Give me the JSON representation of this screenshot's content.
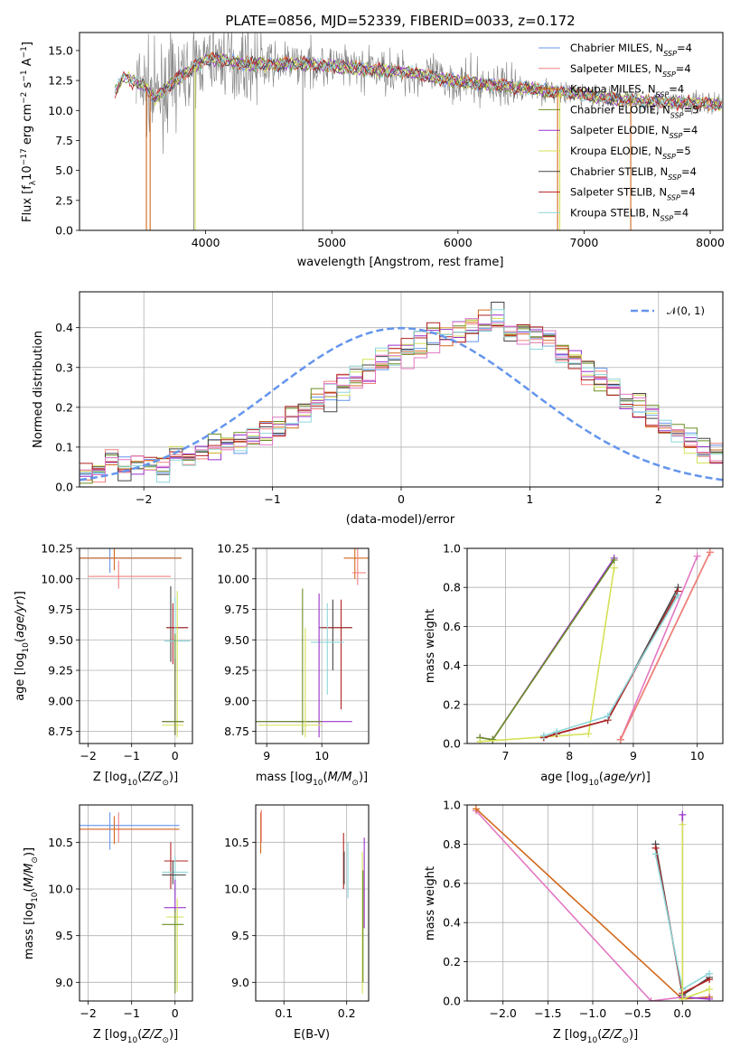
{
  "figure": {
    "title": "PLATE=0856, MJD=52339, FIBERID=0033, z=0.172"
  },
  "colors": {
    "Chabrier MILES": "#6495ED",
    "Salpeter MILES": "#F08080",
    "Kroupa MILES": "#D2691E",
    "Chabrier ELODIE": "#6B8E23",
    "Salpeter ELODIE": "#9932CC",
    "Kroupa ELODIE": "#D4E157",
    "Chabrier STELIB": "#444444",
    "Salpeter STELIB": "#B22222",
    "Kroupa STELIB": "#8ED6DA",
    "data": "#808080",
    "gaussian": "#6495ED",
    "hot_pink": "#E377C2"
  },
  "chart_data": [
    {
      "id": "spectrum",
      "type": "line",
      "title": "PLATE=0856, MJD=52339, FIBERID=0033, z=0.172",
      "xlabel": "wavelength [Angstrom, rest frame]",
      "ylabel": "Flux [f_λ 10^-17 erg cm^-2 s^-1 A^-1]",
      "xlim": [
        3000,
        8100
      ],
      "ylim": [
        0,
        16.5
      ],
      "xticks": [
        "4000",
        "5000",
        "6000",
        "7000",
        "8000"
      ],
      "yticks": [
        "0.0",
        "2.5",
        "5.0",
        "7.5",
        "10.0",
        "12.5",
        "15.0"
      ],
      "legend_position": "upper-right",
      "legend": [
        {
          "label": "Chabrier MILES, N",
          "sub": "SSP",
          "tail": "=4"
        },
        {
          "label": "Salpeter MILES, N",
          "sub": "SSP",
          "tail": "=4"
        },
        {
          "label": "Kroupa MILES, N",
          "sub": "SSP",
          "tail": "=4"
        },
        {
          "label": "Chabrier ELODIE, N",
          "sub": "SSP",
          "tail": "=5"
        },
        {
          "label": "Salpeter ELODIE, N",
          "sub": "SSP",
          "tail": "=4"
        },
        {
          "label": "Kroupa ELODIE, N",
          "sub": "SSP",
          "tail": "=5"
        },
        {
          "label": "Chabrier STELIB, N",
          "sub": "SSP",
          "tail": "=4"
        },
        {
          "label": "Salpeter STELIB, N",
          "sub": "SSP",
          "tail": "=4"
        },
        {
          "label": "Kroupa STELIB, N",
          "sub": "SSP",
          "tail": "=4"
        }
      ],
      "series_note": "observed spectrum (grey) plus nine model fits",
      "model_continuum_knots": {
        "x": [
          3280,
          3350,
          3500,
          3600,
          3700,
          3800,
          3900,
          4000,
          4100,
          4300,
          4500,
          4800,
          5000,
          5300,
          5600,
          6000,
          6300,
          6600,
          6800,
          7000,
          7300,
          7600,
          7900,
          8100
        ],
        "y": [
          11.5,
          12.8,
          12.1,
          11.0,
          12.0,
          12.8,
          13.6,
          14.2,
          14.3,
          13.9,
          13.8,
          13.9,
          13.7,
          13.4,
          13.2,
          12.4,
          12.1,
          11.8,
          11.5,
          11.3,
          10.9,
          10.7,
          10.6,
          10.5
        ]
      },
      "deep_features": {
        "orange_drop_x": [
          3530,
          3560,
          6790,
          7370
        ],
        "yellow_drop_x": [
          3910,
          6800
        ],
        "grey_spike_x": [
          3905,
          4770
        ]
      }
    },
    {
      "id": "residuals",
      "type": "area",
      "xlabel": "(data-model)/error",
      "ylabel": "Normed distribution",
      "xlim": [
        -2.5,
        2.5
      ],
      "ylim": [
        0,
        0.49
      ],
      "xticks": [
        "−2",
        "−1",
        "0",
        "1",
        "2"
      ],
      "yticks": [
        "0.0",
        "0.1",
        "0.2",
        "0.3",
        "0.4"
      ],
      "legend": "𝒩(0, 1)",
      "legend_position": "upper-right",
      "bin_width": 0.1,
      "bin_start": -2.5,
      "histogram_values_approx": [
        0.04,
        0.04,
        0.06,
        0.05,
        0.06,
        0.06,
        0.05,
        0.08,
        0.07,
        0.08,
        0.1,
        0.11,
        0.11,
        0.13,
        0.14,
        0.16,
        0.17,
        0.19,
        0.21,
        0.23,
        0.25,
        0.27,
        0.29,
        0.31,
        0.33,
        0.34,
        0.36,
        0.38,
        0.38,
        0.39,
        0.4,
        0.41,
        0.42,
        0.4,
        0.39,
        0.37,
        0.36,
        0.34,
        0.32,
        0.29,
        0.27,
        0.25,
        0.22,
        0.2,
        0.18,
        0.16,
        0.14,
        0.12,
        0.1,
        0.08,
        0.07,
        0.06,
        0.05,
        0.05,
        0.04
      ]
    },
    {
      "id": "age-vs-Z",
      "type": "scatter",
      "xlabel": "Z [log10(Z/Z⊙)]",
      "ylabel": "age  [log10(age/yr)]",
      "xlim": [
        -2.2,
        0.4
      ],
      "ylim": [
        8.65,
        10.25
      ],
      "xticks": [
        "−2",
        "−1",
        "0"
      ],
      "yticks": [
        "8.75",
        "9.00",
        "9.25",
        "9.50",
        "9.75",
        "10.00",
        "10.25"
      ]
    },
    {
      "id": "age-vs-mass",
      "type": "scatter",
      "xlabel": "mass [log10(M/M⊙)]",
      "ylabel": "",
      "xlim": [
        8.8,
        10.85
      ],
      "ylim": [
        8.65,
        10.25
      ],
      "xticks": [
        "9",
        "10"
      ],
      "yticks": [
        "8.75",
        "9.00",
        "9.25",
        "9.50",
        "9.75",
        "10.00",
        "10.25"
      ]
    },
    {
      "id": "massweight-vs-age",
      "type": "line",
      "xlabel": "age  [log10(age/yr)]",
      "ylabel": "mass weight",
      "xlim": [
        6.4,
        10.4
      ],
      "ylim": [
        0,
        1
      ],
      "xticks": [
        "7",
        "8",
        "9",
        "10"
      ],
      "yticks": [
        "0.0",
        "0.2",
        "0.4",
        "0.6",
        "0.8",
        "1.0"
      ],
      "series": [
        {
          "color_key": "Salpeter ELODIE",
          "x": [
            6.6,
            6.8,
            8.7
          ],
          "y": [
            0.03,
            0.02,
            0.95
          ]
        },
        {
          "color_key": "Chabrier ELODIE",
          "x": [
            6.6,
            6.8,
            8.7
          ],
          "y": [
            0.03,
            0.02,
            0.94
          ]
        },
        {
          "color_key": "Kroupa ELODIE",
          "x": [
            6.6,
            8.3,
            8.7
          ],
          "y": [
            0.01,
            0.05,
            0.9
          ]
        },
        {
          "color_key": "Chabrier STELIB",
          "x": [
            7.6,
            7.8,
            8.6,
            9.7
          ],
          "y": [
            0.03,
            0.05,
            0.12,
            0.8
          ]
        },
        {
          "color_key": "Salpeter STELIB",
          "x": [
            7.6,
            7.8,
            8.6,
            9.7
          ],
          "y": [
            0.03,
            0.05,
            0.12,
            0.78
          ]
        },
        {
          "color_key": "Kroupa STELIB",
          "x": [
            7.6,
            7.8,
            8.6,
            9.7
          ],
          "y": [
            0.04,
            0.06,
            0.14,
            0.76
          ]
        },
        {
          "color_key": "hot_pink",
          "x": [
            8.8,
            10.0
          ],
          "y": [
            0.02,
            0.96
          ]
        },
        {
          "color_key": "Kroupa MILES",
          "x": [
            8.8,
            10.2
          ],
          "y": [
            0.02,
            0.98
          ]
        },
        {
          "color_key": "Salpeter MILES",
          "x": [
            8.8,
            10.2
          ],
          "y": [
            0.02,
            0.98
          ]
        }
      ]
    },
    {
      "id": "mass-vs-Z",
      "type": "scatter",
      "xlabel": "Z [log10(Z/Z⊙)]",
      "ylabel": "mass [log10(M/M⊙)]",
      "xlim": [
        -2.2,
        0.4
      ],
      "ylim": [
        8.8,
        10.9
      ],
      "xticks": [
        "−2",
        "−1",
        "0"
      ],
      "yticks": [
        "9.0",
        "9.5",
        "10.0",
        "10.5"
      ]
    },
    {
      "id": "mass-vs-EBV",
      "type": "scatter",
      "xlabel": "E(B-V)",
      "ylabel": "",
      "xlim": [
        0.055,
        0.235
      ],
      "ylim": [
        8.8,
        10.9
      ],
      "xticks": [
        "0.1",
        "0.2"
      ],
      "yticks": [
        "9.0",
        "9.5",
        "10.0",
        "10.5"
      ]
    },
    {
      "id": "massweight-vs-Z",
      "type": "line",
      "xlabel": "Z [log10(Z/Z⊙)]",
      "ylabel": "mass weight",
      "xlim": [
        -2.4,
        0.45
      ],
      "ylim": [
        0,
        1
      ],
      "xticks": [
        "−2.0",
        "−1.5",
        "−1.0",
        "−0.5",
        "0.0"
      ],
      "yticks": [
        "0.0",
        "0.2",
        "0.4",
        "0.6",
        "0.8",
        "1.0"
      ],
      "series": [
        {
          "color_key": "hot_pink",
          "x": [
            -2.3,
            -0.35,
            0.0
          ],
          "y": [
            0.97,
            0.0,
            0.02
          ]
        },
        {
          "color_key": "Kroupa MILES",
          "x": [
            -2.3,
            0.0,
            0.3
          ],
          "y": [
            0.98,
            0.01,
            0.02
          ]
        },
        {
          "color_key": "Chabrier STELIB",
          "x": [
            -0.3,
            0.0,
            0.3
          ],
          "y": [
            0.8,
            0.03,
            0.12
          ]
        },
        {
          "color_key": "Salpeter STELIB",
          "x": [
            -0.3,
            0.0,
            0.3
          ],
          "y": [
            0.78,
            0.04,
            0.11
          ]
        },
        {
          "color_key": "Kroupa STELIB",
          "x": [
            -0.3,
            0.0,
            0.3
          ],
          "y": [
            0.75,
            0.06,
            0.14
          ]
        },
        {
          "color_key": "Salpeter ELODIE",
          "x": [
            0.0,
            0.0,
            0.3
          ],
          "y": [
            0.95,
            0.02,
            0.01
          ]
        },
        {
          "color_key": "Kroupa ELODIE",
          "x": [
            0.0,
            0.0,
            0.3
          ],
          "y": [
            0.9,
            0.01,
            0.06
          ]
        }
      ]
    }
  ]
}
